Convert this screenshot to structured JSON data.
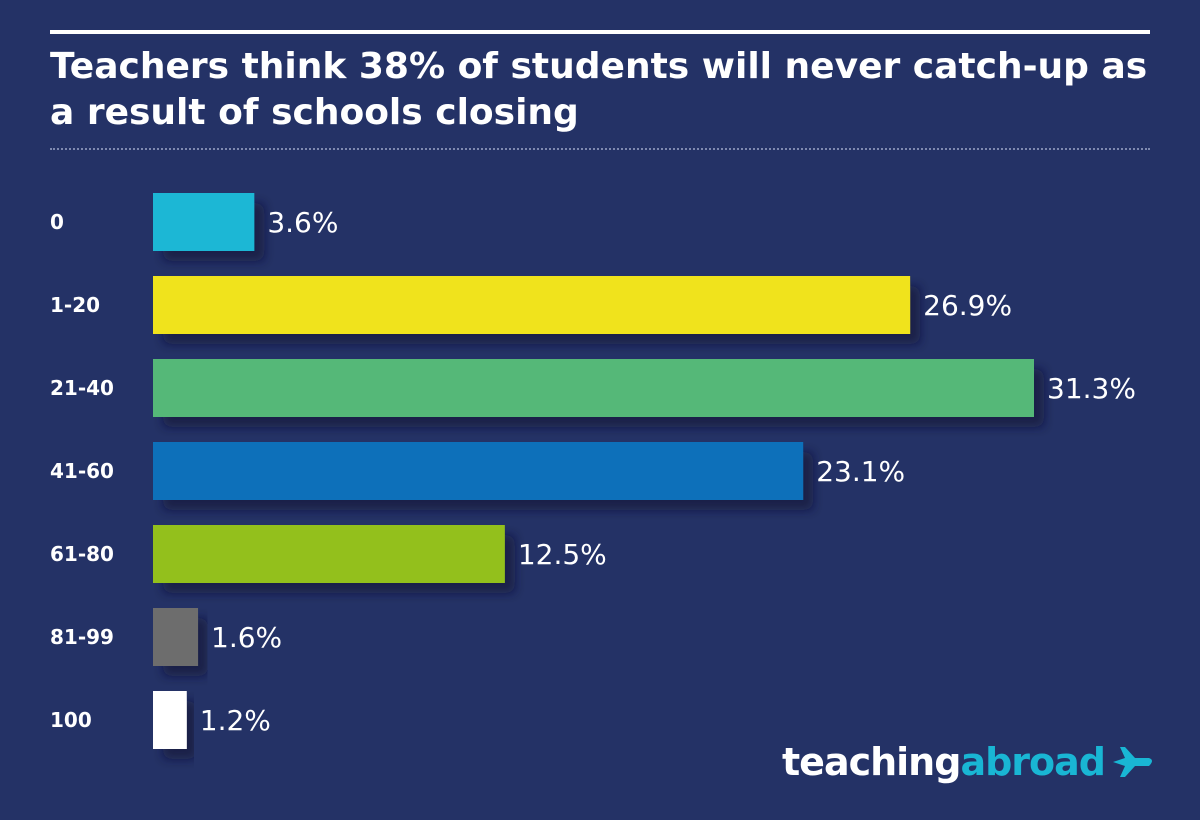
{
  "chart_data": {
    "type": "bar",
    "orientation": "horizontal",
    "title": "Teachers think 38% of students will never catch-up as a result of schools closing",
    "categories": [
      "0",
      "1-20",
      "21-40",
      "41-60",
      "61-80",
      "81-99",
      "100"
    ],
    "values": [
      3.6,
      26.9,
      31.3,
      23.1,
      12.5,
      1.6,
      1.2
    ],
    "value_labels": [
      "3.6%",
      "26.9%",
      "31.3%",
      "23.1%",
      "12.5%",
      "1.6%",
      "1.2%"
    ],
    "colors": [
      "#1bb7d5",
      "#f0e31a",
      "#55b878",
      "#1170ba",
      "#93c01f",
      "#6d6d6d",
      "#ffffff"
    ],
    "xlim": [
      0,
      31.3
    ],
    "grid": false,
    "legend": "none",
    "xlabel": "",
    "ylabel": ""
  },
  "logo": {
    "part1": "teaching",
    "part2": "abroad",
    "icon": "airplane-icon",
    "color1": "#ffffff",
    "color2": "#19b6d4"
  },
  "background_color": "#243266"
}
